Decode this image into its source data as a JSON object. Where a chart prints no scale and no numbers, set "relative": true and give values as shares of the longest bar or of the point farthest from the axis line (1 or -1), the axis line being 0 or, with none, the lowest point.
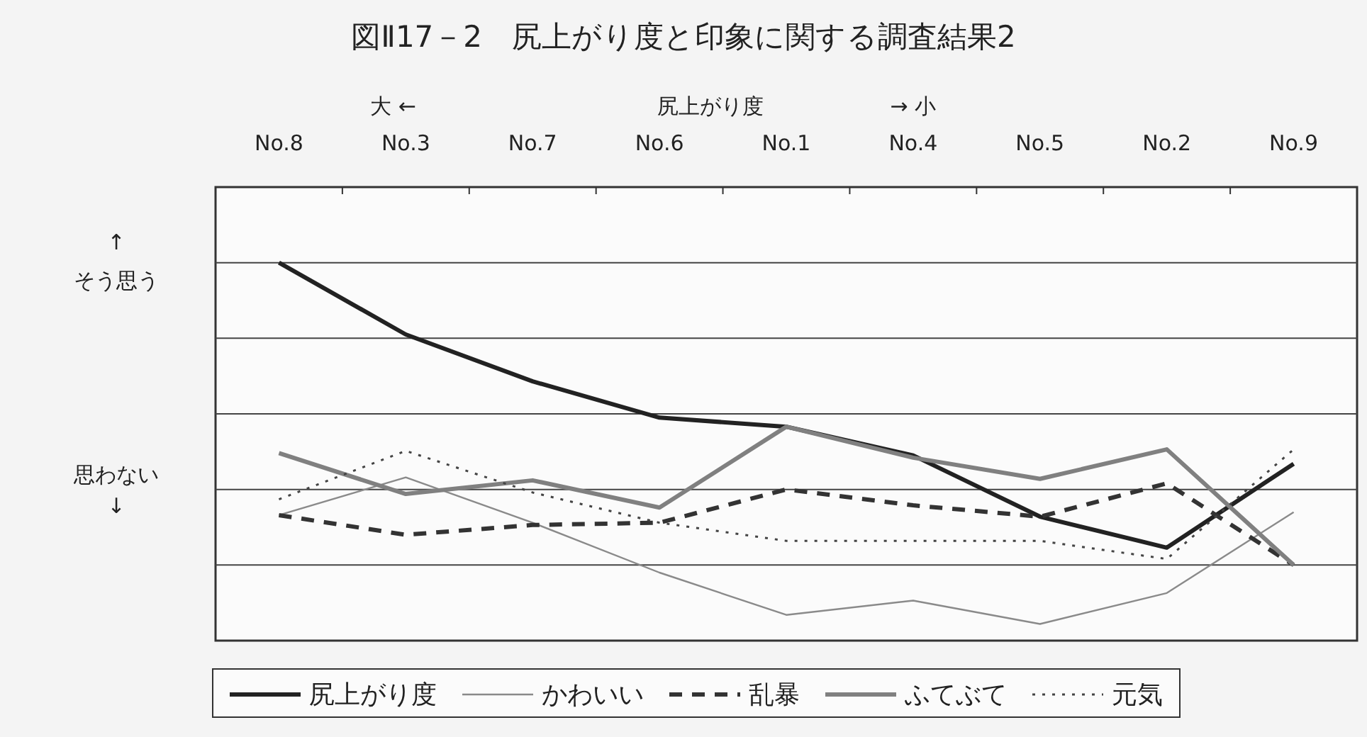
{
  "chart_data": {
    "type": "line",
    "title": "図Ⅱ17－2　尻上がり度と印象に関する調査結果2",
    "relative": true,
    "grid": "y",
    "legend": "bottom",
    "marker": "none",
    "annotations": [
      "大 ←",
      "尻上がり度",
      "→ 小",
      "↑",
      "そう思う",
      "思わない",
      "↓"
    ],
    "categories": [
      "No.8",
      "No.3",
      "No.7",
      "No.6",
      "No.1",
      "No.4",
      "No.5",
      "No.2",
      "No.9"
    ],
    "series": [
      {
        "name": "尻上がり度",
        "color": "#222222",
        "line_style": "solid",
        "values": [
          1.0,
          0.81,
          0.686,
          0.59,
          0.566,
          0.49,
          0.328,
          0.246,
          0.468
        ]
      },
      {
        "name": "かわいい",
        "color": "#8a8a8a",
        "line_style": "solid",
        "values": [
          0.332,
          0.432,
          0.312,
          0.18,
          0.068,
          0.106,
          0.044,
          0.126,
          0.34
        ]
      },
      {
        "name": "乱暴",
        "color": "#333333",
        "line_style": "dashed",
        "values": [
          0.332,
          0.28,
          0.306,
          0.312,
          0.4,
          0.358,
          0.328,
          0.416,
          0.2
        ]
      },
      {
        "name": "ふてぶて",
        "color": "#808080",
        "line_style": "solid",
        "values": [
          0.496,
          0.388,
          0.424,
          0.352,
          0.566,
          0.484,
          0.428,
          0.506,
          0.2
        ]
      },
      {
        "name": "元気",
        "color": "#444444",
        "line_style": "dotted",
        "values": [
          0.374,
          0.502,
          0.392,
          0.312,
          0.264,
          0.264,
          0.264,
          0.216,
          0.506
        ]
      }
    ]
  }
}
